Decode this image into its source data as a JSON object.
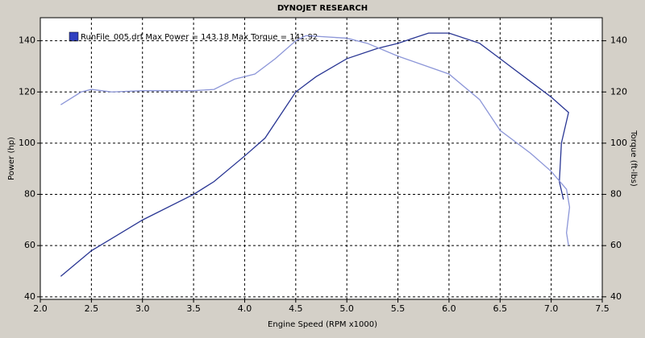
{
  "chart_data": {
    "type": "line",
    "title": "DYNOJET RESEARCH",
    "legend_text": "RunFile_005.drf Max Power = 143.18 Max Torque = 141.92",
    "xlabel": "Engine Speed (RPM x1000)",
    "ylabel": "Power (hp)",
    "y2label": "Torque (ft-lbs)",
    "xlim": [
      2.0,
      7.5
    ],
    "xticks": [
      {
        "value": 2,
        "label": "2.0"
      },
      2.5,
      {
        "value": 3,
        "label": "3.0"
      },
      3.5,
      {
        "value": 4,
        "label": "4.0"
      },
      4.5,
      {
        "value": 5,
        "label": "5.0"
      },
      5.5,
      {
        "value": 6,
        "label": "6.0"
      },
      6.5,
      {
        "value": 7,
        "label": "7.0"
      },
      7.5
    ],
    "ylim": [
      39,
      149
    ],
    "yticks": [
      40,
      60,
      80,
      100,
      120,
      140
    ],
    "y2lim": [
      39,
      149
    ],
    "y2ticks": [
      40,
      60,
      80,
      100,
      120,
      140
    ],
    "grid": true,
    "series": [
      {
        "name": "Power",
        "color": "#283593",
        "x": [
          2.2,
          2.5,
          3.0,
          3.5,
          3.7,
          4.0,
          4.2,
          4.5,
          4.7,
          5.0,
          5.3,
          5.5,
          5.8,
          6.0,
          6.3,
          6.5,
          6.8,
          7.0,
          7.17,
          7.1,
          7.08,
          7.12
        ],
        "values": [
          48,
          58,
          70,
          80,
          85,
          95,
          102,
          120,
          126,
          133,
          137,
          139,
          143,
          143,
          139,
          133,
          124,
          118,
          112,
          100,
          85,
          78
        ]
      },
      {
        "name": "Torque",
        "color": "#8c96d8",
        "axis": "y2",
        "x": [
          2.2,
          2.4,
          2.5,
          2.7,
          3.0,
          3.5,
          3.7,
          3.9,
          4.1,
          4.3,
          4.5,
          4.6,
          5.0,
          5.2,
          5.5,
          6.0,
          6.3,
          6.5,
          6.8,
          7.0,
          7.15,
          7.18,
          7.15,
          7.17
        ],
        "values": [
          115,
          120,
          121,
          120,
          120.5,
          120.5,
          121,
          125,
          127,
          133,
          140,
          142,
          141,
          139,
          134,
          127,
          117,
          105,
          96,
          89,
          82,
          75,
          65,
          60
        ]
      }
    ]
  }
}
